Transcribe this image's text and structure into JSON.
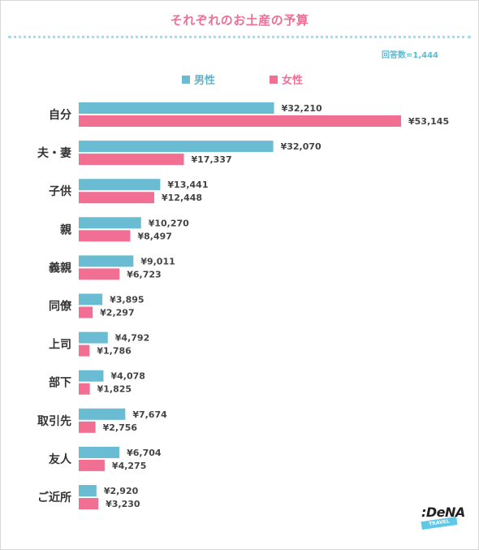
{
  "chart_data": {
    "type": "bar",
    "orientation": "horizontal",
    "title": "それぞれのお土産の予算",
    "respondents": "回答数=1,444",
    "categories": [
      "自分",
      "夫・妻",
      "子供",
      "親",
      "義親",
      "同僚",
      "上司",
      "部下",
      "取引先",
      "友人",
      "ご近所"
    ],
    "series": [
      {
        "name": "男性",
        "color": "#6abcd2",
        "values": [
          32210,
          32070,
          13441,
          10270,
          9011,
          3895,
          4792,
          4078,
          7674,
          6704,
          2920
        ],
        "labels": [
          "¥32,210",
          "¥32,070",
          "¥13,441",
          "¥10,270",
          "¥9,011",
          "¥3,895",
          "¥4,792",
          "¥4,078",
          "¥7,674",
          "¥6,704",
          "¥2,920"
        ]
      },
      {
        "name": "女性",
        "color": "#f26f94",
        "values": [
          53145,
          17337,
          12448,
          8497,
          6723,
          2297,
          1786,
          1825,
          2756,
          4275,
          3230
        ],
        "labels": [
          "¥53,145",
          "¥17,337",
          "¥12,448",
          "¥8,497",
          "¥6,723",
          "¥2,297",
          "¥1,786",
          "¥1,825",
          "¥2,756",
          "¥4,275",
          "¥3,230"
        ]
      }
    ],
    "xlim": [
      0,
      53145
    ],
    "grid": false,
    "legend_position": "top"
  },
  "logo": {
    "main": ":DeNA",
    "sub": "TRAVEL"
  }
}
